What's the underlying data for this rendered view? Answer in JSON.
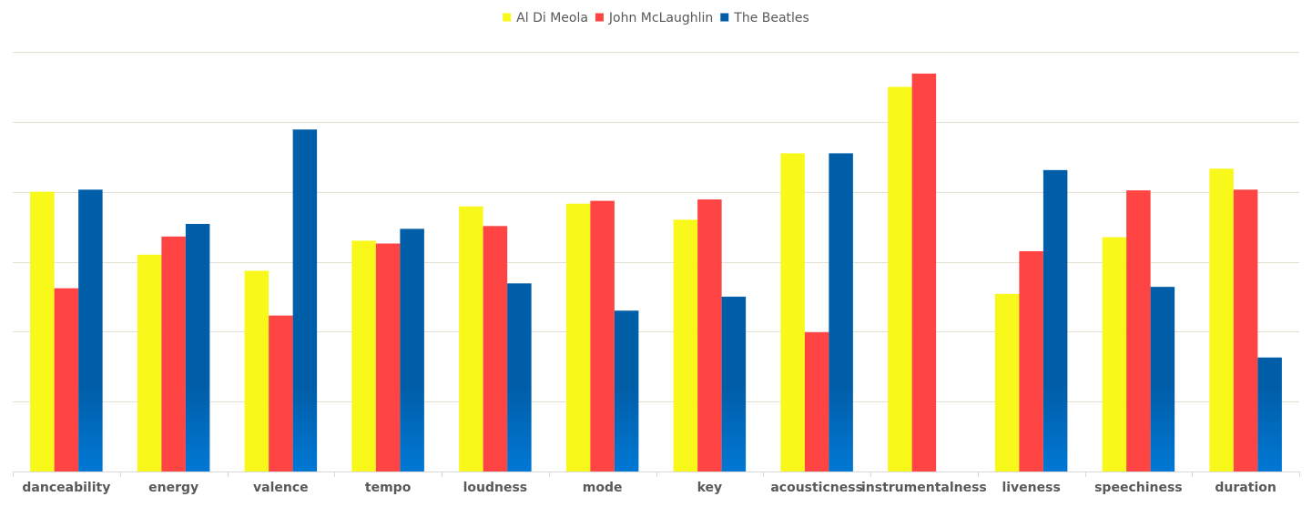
{
  "chart_data": {
    "type": "bar",
    "categories": [
      "danceability",
      "energy",
      "valence",
      "tempo",
      "loudness",
      "mode",
      "key",
      "acousticness",
      "instrumentalness",
      "liveness",
      "speechiness",
      "duration"
    ],
    "series": [
      {
        "name": "Al Di Meola",
        "color": "#f8f81a",
        "values": [
          4.0,
          3.1,
          2.87,
          3.3,
          3.79,
          3.83,
          3.6,
          4.55,
          5.5,
          2.54,
          3.35,
          4.33
        ]
      },
      {
        "name": "John McLaughlin",
        "color": "#ff4444",
        "values": [
          2.62,
          3.36,
          2.23,
          3.26,
          3.51,
          3.87,
          3.89,
          1.99,
          5.69,
          3.15,
          4.02,
          4.03
        ]
      },
      {
        "name": "The Beatles",
        "color": "#005ea8",
        "color_bottom": "#0078d4",
        "values": [
          4.03,
          3.54,
          4.89,
          3.47,
          2.69,
          2.3,
          2.5,
          4.55,
          0,
          4.31,
          2.64,
          1.63
        ]
      }
    ],
    "ylim": [
      0,
      6
    ],
    "yticks": [
      0,
      1,
      2,
      3,
      4,
      5,
      6
    ],
    "grid": true,
    "legend": "top-center",
    "title": "",
    "xlabel": "",
    "ylabel": ""
  }
}
